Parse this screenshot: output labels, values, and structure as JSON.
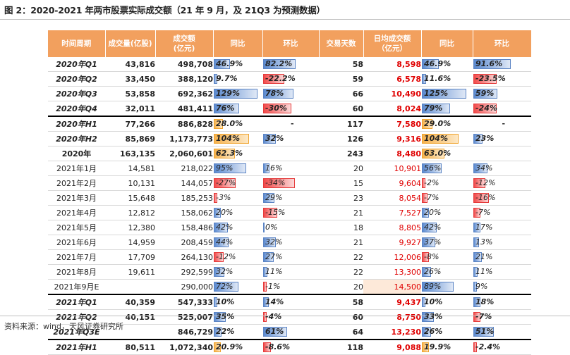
{
  "caption": "图 2：2020-2021 年两市股票实际成交额（21 年 9 月，及 21Q3 为预测数据）",
  "source": "资料来源：wind，天风证券研究所",
  "headers": {
    "period": "时间周期",
    "volume": "成交量(亿股)",
    "amount_1": "成交额",
    "amount_2": "(亿元)",
    "yoy": "同比",
    "qoq": "环比",
    "days": "交易天数",
    "daily_1": "日均成交额",
    "daily_2": "（亿元）",
    "yoy2": "同比",
    "qoq2": "环比"
  },
  "colors": {
    "header": "#f2a05e",
    "red_text": "#e00000",
    "blue_bar": "#5b8ad0",
    "red_bar": "#f24a4a",
    "orange_bar": "#f6b24d"
  },
  "rows": [
    {
      "label": "2020年Q1",
      "vol": "43,816",
      "amt": "498,708",
      "yoy": "46.9%",
      "yoyv": 0.469,
      "qoq": "82.2%",
      "qoqv": 0.822,
      "days": "58",
      "daily": "8,598",
      "dyoy": "46.9%",
      "dyoyv": 0.469,
      "dqoq": "91.6%",
      "dqoqv": 0.916,
      "style": "bold ital"
    },
    {
      "label": "2020年Q2",
      "vol": "33,450",
      "amt": "388,120",
      "yoy": "9.7%",
      "yoyv": 0.097,
      "qoq": "-22.2%",
      "qoqv": -0.222,
      "days": "59",
      "daily": "6,578",
      "dyoy": "11.6%",
      "dyoyv": 0.116,
      "dqoq": "-23.5%",
      "dqoqv": -0.235,
      "style": "bold ital"
    },
    {
      "label": "2020年Q3",
      "vol": "53,858",
      "amt": "692,362",
      "yoy": "129%",
      "yoyv": 1.29,
      "qoq": "78%",
      "qoqv": 0.78,
      "days": "66",
      "daily": "10,490",
      "dyoy": "125%",
      "dyoyv": 1.25,
      "dqoq": "59%",
      "dqoqv": 0.59,
      "style": "bold ital"
    },
    {
      "label": "2020年Q4",
      "vol": "32,011",
      "amt": "481,411",
      "yoy": "76%",
      "yoyv": 0.76,
      "qoq": "-30%",
      "qoqv": -0.3,
      "days": "60",
      "daily": "8,024",
      "dyoy": "79%",
      "dyoyv": 0.79,
      "dqoq": "-24%",
      "dqoqv": -0.24,
      "style": "bold ital"
    },
    {
      "label": "2020年H1",
      "vol": "77,266",
      "amt": "886,828",
      "yoy": "28.0%",
      "yoyv": 0.28,
      "qoq": "-",
      "qoqv": null,
      "days": "117",
      "daily": "7,580",
      "dyoy": "29.0%",
      "dyoyv": 0.29,
      "dqoq": "-",
      "dqoqv": null,
      "style": "bold ital orange sum"
    },
    {
      "label": "2020年H2",
      "vol": "85,869",
      "amt": "1,173,773",
      "yoy": "104%",
      "yoyv": 1.04,
      "qoq": "32%",
      "qoqv": 0.32,
      "days": "126",
      "daily": "9,316",
      "dyoy": "104%",
      "dyoyv": 1.04,
      "dqoq": "23%",
      "dqoqv": 0.23,
      "style": "bold ital orange sum2"
    },
    {
      "label": "2020年",
      "vol": "163,135",
      "amt": "2,060,601",
      "yoy": "62.3%",
      "yoyv": 0.623,
      "qoq": "",
      "qoqv": null,
      "days": "243",
      "daily": "8,480",
      "dyoy": "63.0%",
      "dyoyv": 0.63,
      "dqoq": "",
      "dqoqv": null,
      "style": "bold orange sum2"
    },
    {
      "label": "2021年1月",
      "vol": "14,581",
      "amt": "218,022",
      "yoy": "95%",
      "yoyv": 0.95,
      "qoq": "16%",
      "qoqv": 0.16,
      "days": "20",
      "daily": "10,901",
      "dyoy": "56%",
      "dyoyv": 0.56,
      "dqoq": "34%",
      "dqoqv": 0.34,
      "style": ""
    },
    {
      "label": "2021年2月",
      "vol": "10,131",
      "amt": "144,057",
      "yoy": "-27%",
      "yoyv": -0.27,
      "qoq": "-34%",
      "qoqv": -0.34,
      "days": "15",
      "daily": "9,604",
      "dyoy": "-2%",
      "dyoyv": -0.02,
      "dqoq": "-12%",
      "dqoqv": -0.12,
      "style": ""
    },
    {
      "label": "2021年3月",
      "vol": "15,648",
      "amt": "185,253",
      "yoy": "-3%",
      "yoyv": -0.03,
      "qoq": "29%",
      "qoqv": 0.29,
      "days": "23",
      "daily": "8,054",
      "dyoy": "-7%",
      "dyoyv": -0.07,
      "dqoq": "-16%",
      "dqoqv": -0.16,
      "style": ""
    },
    {
      "label": "2021年4月",
      "vol": "12,812",
      "amt": "158,062",
      "yoy": "20%",
      "yoyv": 0.2,
      "qoq": "-15%",
      "qoqv": -0.15,
      "days": "21",
      "daily": "7,527",
      "dyoy": "20%",
      "dyoyv": 0.2,
      "dqoq": "-7%",
      "dqoqv": -0.07,
      "style": ""
    },
    {
      "label": "2021年5月",
      "vol": "12,380",
      "amt": "158,486",
      "yoy": "42%",
      "yoyv": 0.42,
      "qoq": "0%",
      "qoqv": 0.0,
      "days": "18",
      "daily": "8,805",
      "dyoy": "42%",
      "dyoyv": 0.42,
      "dqoq": "17%",
      "dqoqv": 0.17,
      "style": ""
    },
    {
      "label": "2021年6月",
      "vol": "14,959",
      "amt": "208,459",
      "yoy": "44%",
      "yoyv": 0.44,
      "qoq": "32%",
      "qoqv": 0.32,
      "days": "21",
      "daily": "9,927",
      "dyoy": "37%",
      "dyoyv": 0.37,
      "dqoq": "13%",
      "dqoqv": 0.13,
      "style": ""
    },
    {
      "label": "2021年7月",
      "vol": "17,709",
      "amt": "264,130",
      "yoy": "-12%",
      "yoyv": -0.12,
      "qoq": "27%",
      "qoqv": 0.27,
      "days": "22",
      "daily": "12,006",
      "dyoy": "-8%",
      "dyoyv": -0.08,
      "dqoq": "21%",
      "dqoqv": 0.21,
      "style": ""
    },
    {
      "label": "2021年8月",
      "vol": "19,611",
      "amt": "292,599",
      "yoy": "32%",
      "yoyv": 0.32,
      "qoq": "11%",
      "qoqv": 0.11,
      "days": "22",
      "daily": "13,300",
      "dyoy": "26%",
      "dyoyv": 0.26,
      "dqoq": "11%",
      "dqoqv": 0.11,
      "style": ""
    },
    {
      "label": "2021年9月E",
      "vol": "",
      "amt": "290,000",
      "yoy": "72%",
      "yoyv": 0.72,
      "qoq": "-1%",
      "qoqv": -0.01,
      "days": "20",
      "daily": "14,500",
      "dyoy": "89%",
      "dyoyv": 0.89,
      "dqoq": "9%",
      "dqoqv": 0.09,
      "style": "pale"
    },
    {
      "label": "2021年Q1",
      "vol": "40,359",
      "amt": "547,333",
      "yoy": "10%",
      "yoyv": 0.1,
      "qoq": "14%",
      "qoqv": 0.14,
      "days": "58",
      "daily": "9,437",
      "dyoy": "10%",
      "dyoyv": 0.1,
      "dqoq": "18%",
      "dqoqv": 0.18,
      "style": "bold ital sum"
    },
    {
      "label": "2021年Q2",
      "vol": "40,151",
      "amt": "525,007",
      "yoy": "35%",
      "yoyv": 0.35,
      "qoq": "-4%",
      "qoqv": -0.04,
      "days": "60",
      "daily": "8,750",
      "dyoy": "33%",
      "dyoyv": 0.33,
      "dqoq": "-7%",
      "dqoqv": -0.07,
      "style": "bold ital"
    },
    {
      "label": "2021年Q3E",
      "vol": "",
      "amt": "846,729",
      "yoy": "22%",
      "yoyv": 0.22,
      "qoq": "61%",
      "qoqv": 0.61,
      "days": "64",
      "daily": "13,230",
      "dyoy": "26%",
      "dyoyv": 0.26,
      "dqoq": "51%",
      "dqoqv": 0.51,
      "style": "bold ital"
    },
    {
      "label": "2021年H1",
      "vol": "80,511",
      "amt": "1,072,340",
      "yoy": "20.9%",
      "yoyv": 0.209,
      "qoq": "-8.6%",
      "qoqv": -0.086,
      "days": "118",
      "daily": "9,088",
      "dyoy": "19.9%",
      "dyoyv": 0.199,
      "dqoq": "-2.4%",
      "dqoqv": -0.024,
      "style": "bold ital orange sum sum2"
    }
  ]
}
